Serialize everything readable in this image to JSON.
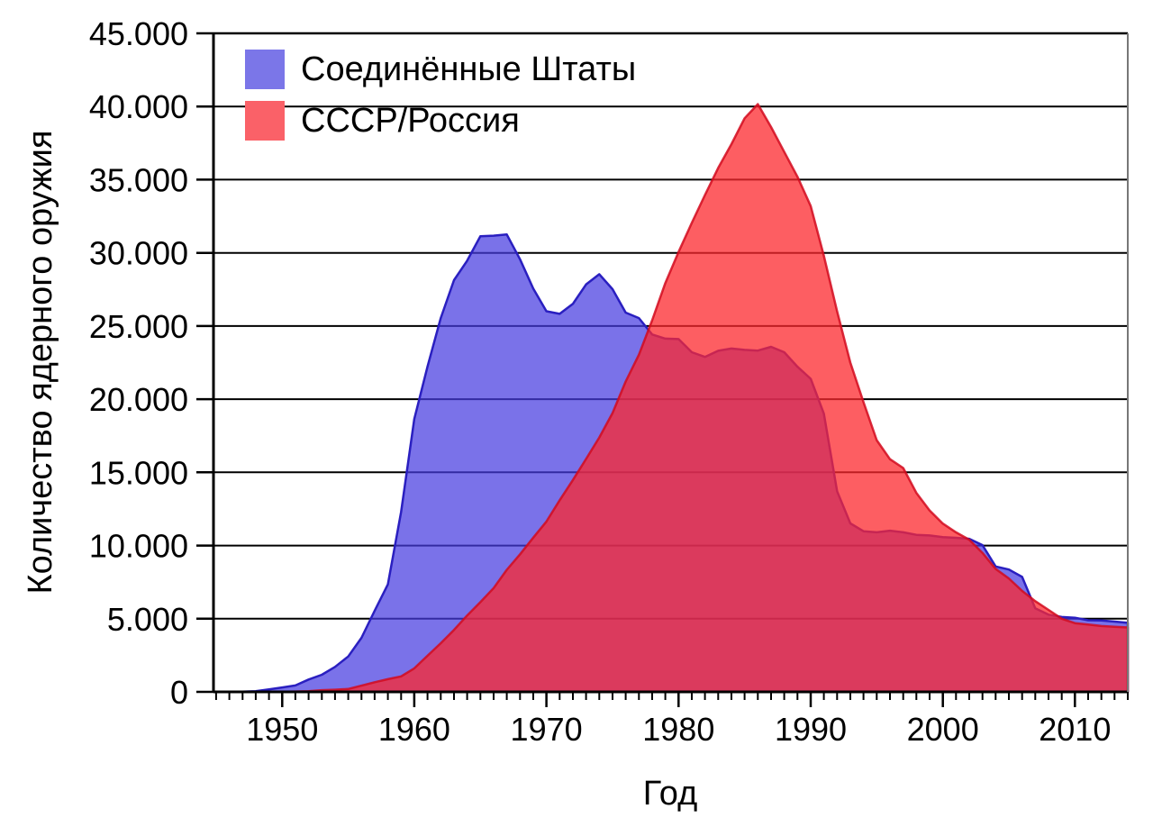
{
  "chart_data": {
    "type": "area",
    "title": "",
    "xlabel": "Год",
    "ylabel": "Количество ядерного оружия",
    "legend_position": "top-left",
    "grid": "horizontal",
    "xlim": [
      1944.8,
      2014
    ],
    "ylim": [
      0,
      45000
    ],
    "x_major_ticks": [
      1950,
      1960,
      1970,
      1980,
      1990,
      2000,
      2010
    ],
    "x_major_tick_labels": [
      "1950",
      "1960",
      "1970",
      "1980",
      "1990",
      "2000",
      "2010"
    ],
    "y_tick_values": [
      0,
      5000,
      10000,
      15000,
      20000,
      25000,
      30000,
      35000,
      40000,
      45000
    ],
    "y_tick_labels": [
      "0",
      "5.000",
      "10.000",
      "15.000",
      "20.000",
      "25.000",
      "30.000",
      "35.000",
      "40.000",
      "45.000"
    ],
    "years": [
      1945,
      1946,
      1947,
      1948,
      1949,
      1950,
      1951,
      1952,
      1953,
      1954,
      1955,
      1956,
      1957,
      1958,
      1959,
      1960,
      1961,
      1962,
      1963,
      1964,
      1965,
      1966,
      1967,
      1968,
      1969,
      1970,
      1971,
      1972,
      1973,
      1974,
      1975,
      1976,
      1977,
      1978,
      1979,
      1980,
      1981,
      1982,
      1983,
      1984,
      1985,
      1986,
      1987,
      1988,
      1989,
      1990,
      1991,
      1992,
      1993,
      1994,
      1995,
      1996,
      1997,
      1998,
      1999,
      2000,
      2001,
      2002,
      2003,
      2004,
      2005,
      2006,
      2007,
      2008,
      2009,
      2010,
      2011,
      2012,
      2013,
      2014
    ],
    "series": [
      {
        "name": "Соединённые Штаты",
        "fill": "rgba(70,60,225,0.72)",
        "stroke": "#2a1fc0",
        "stroke_width": 2.5,
        "swatch": "#7b76e8",
        "values": [
          2,
          9,
          13,
          50,
          170,
          299,
          438,
          841,
          1169,
          1703,
          2422,
          3692,
          5543,
          7345,
          12298,
          18638,
          22229,
          25540,
          28133,
          29463,
          31139,
          31175,
          31255,
          29561,
          27552,
          26008,
          25830,
          26516,
          27835,
          28537,
          27519,
          25914,
          25542,
          24418,
          24138,
          24104,
          23208,
          22886,
          23305,
          23459,
          23368,
          23317,
          23575,
          23205,
          22217,
          21392,
          19008,
          13708,
          11511,
          10979,
          10904,
          11011,
          10903,
          10732,
          10685,
          10577,
          10526,
          10457,
          10027,
          8570,
          8360,
          7853,
          5709,
          5273,
          5113,
          5066,
          4897,
          4881,
          4804,
          4717
        ]
      },
      {
        "name": "СССР/Россия",
        "fill": "rgba(252,40,45,0.75)",
        "stroke": "rgba(210,10,30,0.85)",
        "stroke_width": 2.5,
        "swatch": "#fa6168",
        "values": [
          0,
          0,
          0,
          0,
          1,
          5,
          25,
          50,
          120,
          150,
          200,
          426,
          660,
          869,
          1060,
          1605,
          2471,
          3322,
          4238,
          5221,
          6129,
          7089,
          8339,
          9399,
          10538,
          11643,
          13092,
          14478,
          15915,
          17385,
          19055,
          21205,
          23044,
          25393,
          27935,
          30062,
          32049,
          33952,
          35804,
          37431,
          39197,
          40159,
          38600,
          36900,
          35200,
          33200,
          29800,
          26000,
          22500,
          19800,
          17200,
          15900,
          15300,
          13600,
          12400,
          11500,
          10900,
          10400,
          9500,
          8400,
          7750,
          6900,
          6200,
          5600,
          5000,
          4700,
          4600,
          4500,
          4450,
          4400
        ]
      }
    ],
    "colors": {
      "grid": "#000000",
      "frame": "#000000",
      "right_spine": "#777777",
      "text": "#000000"
    }
  }
}
